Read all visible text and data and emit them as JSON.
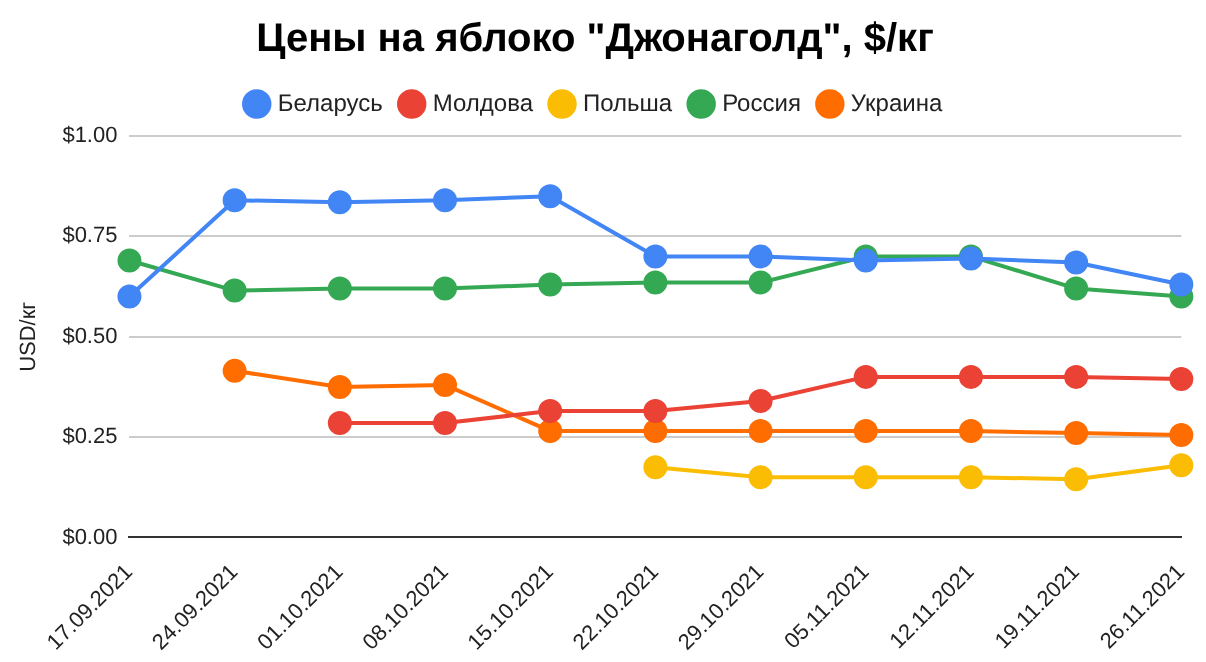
{
  "chart_data": {
    "type": "line",
    "title": "Цены на яблоко \"Джонаголд\", $/кг",
    "ylabel": "USD/кг",
    "categories": [
      "17.09.2021",
      "24.09.2021",
      "01.10.2021",
      "08.10.2021",
      "15.10.2021",
      "22.10.2021",
      "29.10.2021",
      "05.11.2021",
      "12.11.2021",
      "19.11.2021",
      "26.11.2021"
    ],
    "series": [
      {
        "name": "Беларусь",
        "color": "#4285f4",
        "values": [
          0.6,
          0.84,
          0.835,
          0.84,
          0.85,
          0.7,
          0.7,
          0.69,
          0.695,
          0.685,
          0.63
        ]
      },
      {
        "name": "Молдова",
        "color": "#ea4335",
        "values": [
          null,
          null,
          0.285,
          0.285,
          0.315,
          0.315,
          0.34,
          0.4,
          0.4,
          0.4,
          0.395
        ]
      },
      {
        "name": "Польша",
        "color": "#fbbc04",
        "values": [
          null,
          null,
          null,
          null,
          null,
          0.175,
          0.15,
          0.15,
          0.15,
          0.145,
          0.18
        ]
      },
      {
        "name": "Россия",
        "color": "#34a853",
        "values": [
          0.69,
          0.615,
          0.62,
          0.62,
          0.63,
          0.635,
          0.635,
          0.7,
          0.7,
          0.62,
          0.6
        ]
      },
      {
        "name": "Украина",
        "color": "#ff6d01",
        "values": [
          null,
          0.415,
          0.375,
          0.38,
          0.265,
          0.265,
          0.265,
          0.265,
          0.265,
          0.26,
          0.255
        ]
      }
    ],
    "ylim": [
      0,
      1
    ],
    "yticks": [
      {
        "value": 0,
        "label": "$0.00"
      },
      {
        "value": 0.25,
        "label": "$0.25"
      },
      {
        "value": 0.5,
        "label": "$0.50"
      },
      {
        "value": 0.75,
        "label": "$0.75"
      },
      {
        "value": 1,
        "label": "$1.00"
      }
    ],
    "grid": "y",
    "legend": "top",
    "marker": "circle",
    "line_style": "solid"
  }
}
